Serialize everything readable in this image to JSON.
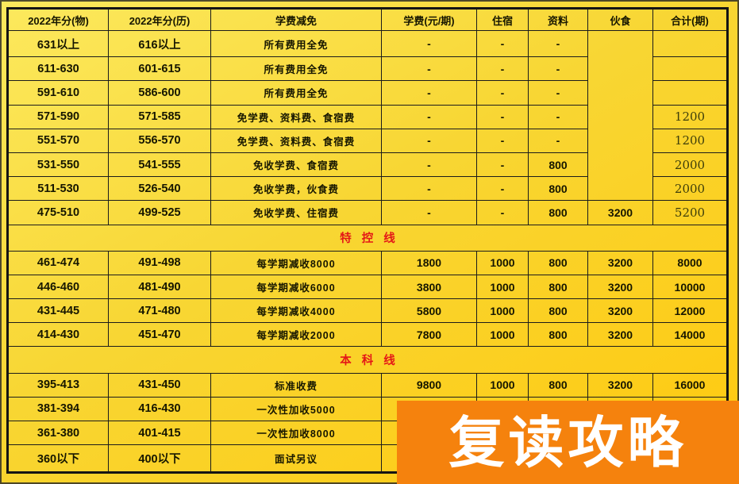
{
  "chart_data": {
    "type": "table",
    "columns": [
      "2022年分(物)",
      "2022年分(历)",
      "学费减免",
      "学费(元/期)",
      "住宿",
      "资料",
      "伙食",
      "合计(期)"
    ],
    "sections": [
      {
        "divider": null,
        "rows": [
          [
            "631以上",
            "616以上",
            "所有费用全免",
            "-",
            "-",
            "-",
            "",
            ""
          ],
          [
            "611-630",
            "601-615",
            "所有费用全免",
            "-",
            "-",
            "-",
            "",
            ""
          ],
          [
            "591-610",
            "586-600",
            "所有费用全免",
            "-",
            "-",
            "-",
            "",
            ""
          ],
          [
            "571-590",
            "571-585",
            "免学费、资料费、食宿费",
            "-",
            "-",
            "-",
            "",
            "1200"
          ],
          [
            "551-570",
            "556-570",
            "免学费、资料费、食宿费",
            "-",
            "-",
            "-",
            "",
            "1200"
          ],
          [
            "531-550",
            "541-555",
            "免收学费、食宿费",
            "-",
            "-",
            "800",
            "",
            "2000"
          ],
          [
            "511-530",
            "526-540",
            "免收学费，伙食费",
            "-",
            "-",
            "800",
            "",
            "2000"
          ],
          [
            "475-510",
            "499-525",
            "免收学费、住宿费",
            "-",
            "-",
            "800",
            "3200",
            "5200"
          ]
        ]
      },
      {
        "divider": "特控线",
        "rows": [
          [
            "461-474",
            "491-498",
            "每学期减收8000",
            "1800",
            "1000",
            "800",
            "3200",
            "8000"
          ],
          [
            "446-460",
            "481-490",
            "每学期减收6000",
            "3800",
            "1000",
            "800",
            "3200",
            "10000"
          ],
          [
            "431-445",
            "471-480",
            "每学期减收4000",
            "5800",
            "1000",
            "800",
            "3200",
            "12000"
          ],
          [
            "414-430",
            "451-470",
            "每学期减收2000",
            "7800",
            "1000",
            "800",
            "3200",
            "14000"
          ]
        ]
      },
      {
        "divider": "本科线",
        "rows": [
          [
            "395-413",
            "431-450",
            "标准收费",
            "9800",
            "1000",
            "800",
            "3200",
            "16000"
          ],
          [
            "381-394",
            "416-430",
            "一次性加收5000",
            "",
            "",
            "",
            "",
            ""
          ],
          [
            "361-380",
            "401-415",
            "一次性加收8000",
            "",
            "",
            "",
            "",
            ""
          ],
          [
            "360以下",
            "400以下",
            "面试另议",
            "",
            "",
            "",
            "",
            ""
          ]
        ]
      }
    ]
  },
  "banner": {
    "label": "复读攻略"
  },
  "colors": {
    "background_top": "#fce95e",
    "background_bottom": "#ffc90e",
    "table_border": "#1b1b1b",
    "divider_red": "#e41717",
    "banner_orange": "#f5820d",
    "banner_text": "#ffffff"
  }
}
